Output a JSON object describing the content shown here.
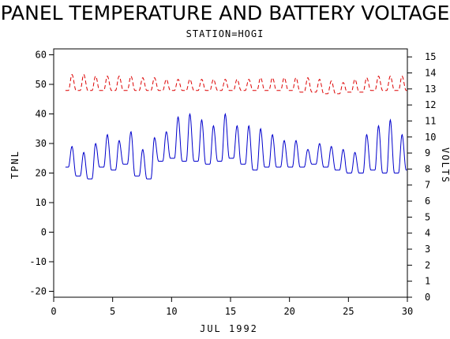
{
  "chart_data": {
    "type": "line",
    "title": "PANEL TEMPERATURE AND BATTERY VOLTAGE",
    "subtitle": "STATION=HOGI",
    "xlabel": "JUL 1992",
    "ylabel_left": "TPNL",
    "ylabel_right": "VOLTS",
    "xlim": [
      0,
      30
    ],
    "ylim_left": [
      -22,
      62
    ],
    "ylim_right": [
      0,
      15.5
    ],
    "x_ticks": [
      0,
      5,
      10,
      15,
      20,
      25,
      30
    ],
    "y_ticks_left": [
      -20,
      -10,
      0,
      10,
      20,
      30,
      40,
      50,
      60
    ],
    "y_ticks_right": [
      0,
      1,
      2,
      3,
      4,
      5,
      6,
      7,
      8,
      9,
      10,
      11,
      12,
      13,
      14,
      15
    ],
    "series": [
      {
        "axis": "left",
        "color": "#0000cc",
        "style": "solid",
        "daily_max": [
          29,
          27,
          30,
          33,
          31,
          34,
          28,
          32,
          34,
          39,
          40,
          38,
          36,
          40,
          36,
          36,
          35,
          33,
          31,
          31,
          28,
          30,
          29,
          28,
          27,
          33,
          36,
          38,
          33,
          31
        ],
        "daily_min": [
          22,
          19,
          18,
          22,
          21,
          23,
          19,
          18,
          24,
          25,
          24,
          24,
          23,
          24,
          25,
          23,
          21,
          22,
          22,
          22,
          22,
          23,
          22,
          21,
          20,
          20,
          21,
          20,
          20,
          21
        ]
      },
      {
        "axis": "right",
        "color": "#dd0000",
        "style": "dashed",
        "daily_max": [
          13.9,
          13.9,
          13.8,
          13.8,
          13.8,
          13.8,
          13.7,
          13.7,
          13.6,
          13.6,
          13.6,
          13.6,
          13.6,
          13.6,
          13.6,
          13.6,
          13.7,
          13.7,
          13.7,
          13.7,
          13.7,
          13.6,
          13.5,
          13.4,
          13.6,
          13.7,
          13.8,
          13.8,
          13.8,
          13.8
        ],
        "daily_min": [
          12.9,
          12.9,
          12.9,
          12.9,
          12.9,
          12.9,
          12.9,
          12.9,
          12.9,
          12.9,
          12.9,
          12.9,
          12.9,
          12.9,
          12.9,
          12.9,
          12.9,
          12.9,
          12.9,
          12.9,
          12.8,
          12.8,
          12.7,
          12.7,
          12.8,
          12.8,
          12.9,
          12.9,
          12.9,
          12.9
        ]
      }
    ]
  }
}
